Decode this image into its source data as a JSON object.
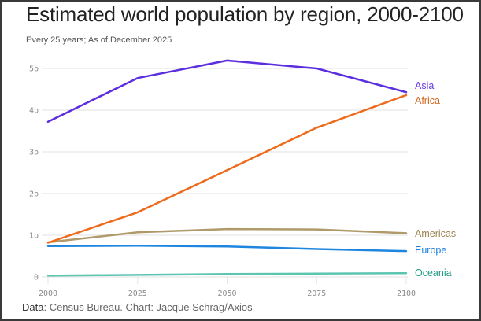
{
  "chart_data": {
    "type": "line",
    "title": "Estimated world population by region, 2000-2100",
    "subtitle": "Every 25 years; As of December 2025",
    "xlabel": "",
    "ylabel": "",
    "x": [
      2000,
      2025,
      2050,
      2075,
      2100
    ],
    "x_tick_labels": [
      "2000",
      "2025",
      "2050",
      "2075",
      "2100"
    ],
    "ylim": [
      0,
      5
    ],
    "y_ticks": [
      0,
      1,
      2,
      3,
      4,
      5
    ],
    "y_tick_labels": [
      "0",
      "1b",
      "2b",
      "3b",
      "4b",
      "5b"
    ],
    "grid": true,
    "legend": "direct labels at right end of lines",
    "series": [
      {
        "name": "Asia",
        "color": "#5b2ee0",
        "values": [
          3.72,
          4.77,
          5.19,
          5.0,
          4.43
        ]
      },
      {
        "name": "Africa",
        "color": "#ee6a1c",
        "values": [
          0.82,
          1.55,
          2.56,
          3.58,
          4.36
        ]
      },
      {
        "name": "Americas",
        "color": "#b09a6a",
        "values": [
          0.83,
          1.07,
          1.15,
          1.14,
          1.05
        ]
      },
      {
        "name": "Europe",
        "color": "#1f86e0",
        "values": [
          0.74,
          0.75,
          0.73,
          0.67,
          0.62
        ]
      },
      {
        "name": "Oceania",
        "color": "#5cc5b0",
        "values": [
          0.03,
          0.05,
          0.07,
          0.08,
          0.09
        ]
      }
    ],
    "series_label_colors": {
      "Asia": "#6a3be0",
      "Africa": "#d2661e",
      "Americas": "#9c8452",
      "Europe": "#1f7fd6",
      "Oceania": "#1f9a86"
    }
  },
  "footer": {
    "data_link": "Data",
    "credit": ": Census Bureau. Chart: Jacque Schrag/Axios"
  }
}
